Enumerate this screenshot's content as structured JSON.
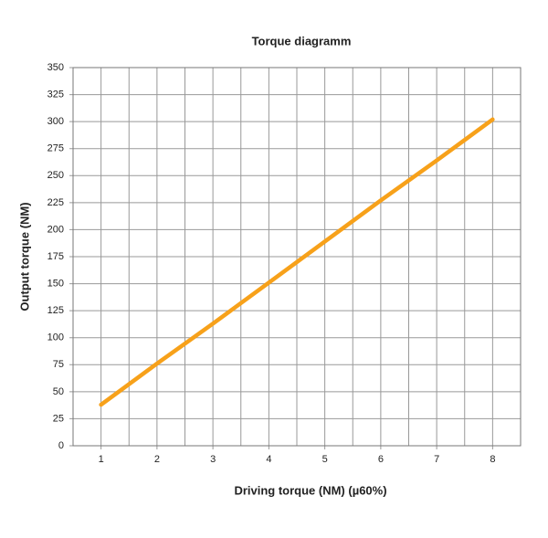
{
  "chart_data": {
    "type": "line",
    "title": "Torque diagramm",
    "x_label": "Driving torque (NM) (µ60%)",
    "y_label": "Output torque  (NM)",
    "x": [
      1,
      2,
      3,
      4,
      5,
      6,
      7,
      8
    ],
    "series": [
      {
        "name": "Output torque",
        "color": "#f7a11a",
        "values": [
          38,
          76,
          113,
          151,
          189,
          227,
          264,
          302
        ]
      }
    ],
    "xlim": [
      0.5,
      8.5
    ],
    "xticks": [
      1,
      2,
      3,
      4,
      5,
      6,
      7,
      8
    ],
    "ylim": [
      0,
      350
    ],
    "yticks": [
      0,
      25,
      50,
      75,
      100,
      125,
      150,
      175,
      200,
      225,
      250,
      275,
      300,
      325,
      350
    ],
    "grid": true
  }
}
